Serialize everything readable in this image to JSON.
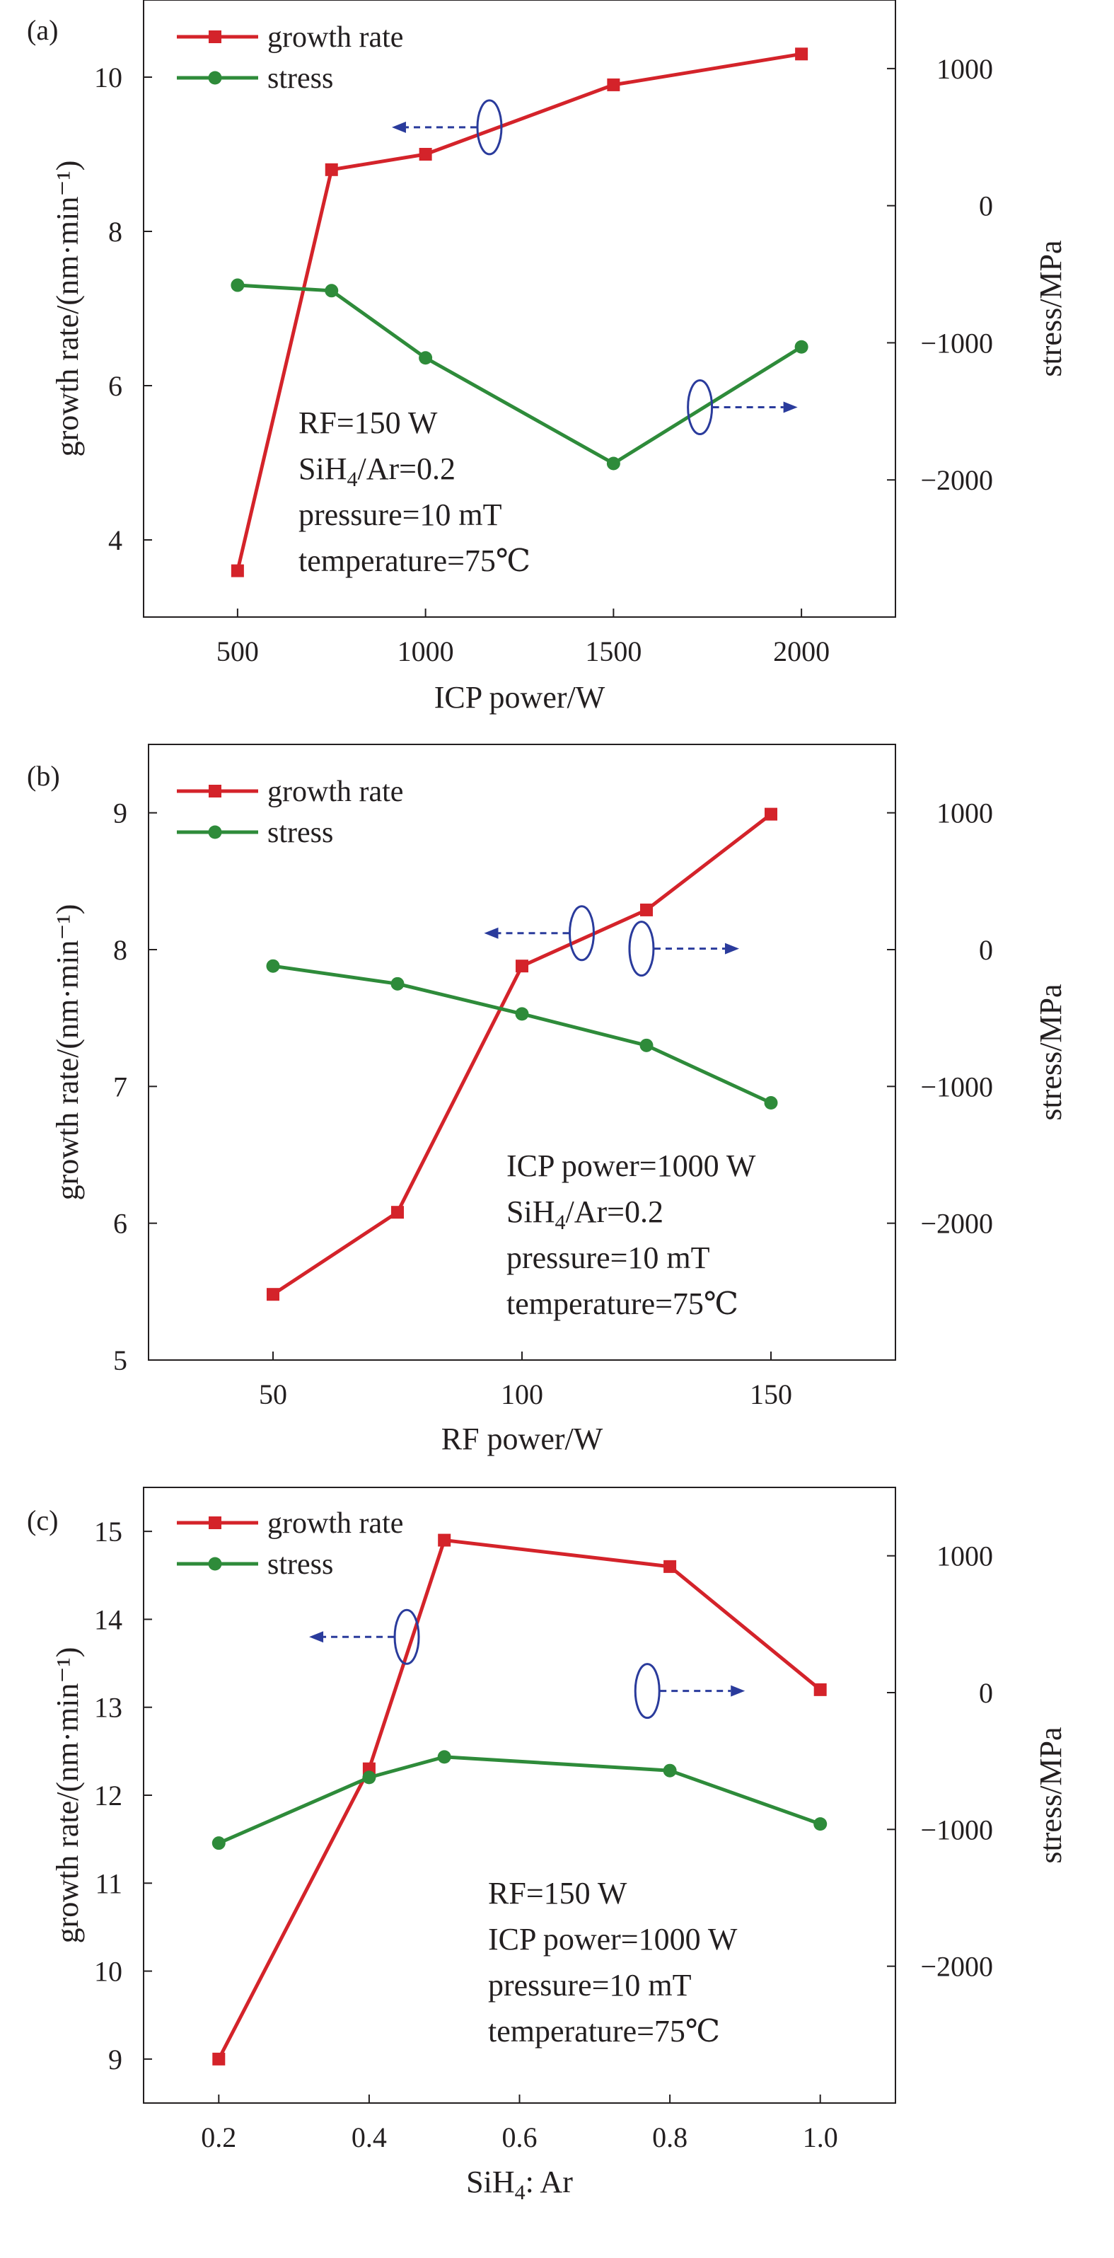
{
  "chart_data": [
    {
      "type": "line",
      "panel_label": "(a)",
      "xlabel": "ICP power/W",
      "ylabel": "growth rate/(nm·min⁻¹)",
      "y2label": "stress/MPa",
      "xlim": [
        250,
        2250
      ],
      "x_ticks": [
        "500",
        "1000",
        "1500",
        "2000"
      ],
      "ylim": [
        3.0,
        11.0
      ],
      "y_ticks": [
        "4",
        "6",
        "8",
        "10"
      ],
      "y2lim": [
        -3000,
        1500
      ],
      "y2_ticks": [
        "1000",
        "0",
        "−1000",
        "−2000"
      ],
      "grid": false,
      "legend_position": "top-left",
      "series": [
        {
          "name": "growth rate",
          "axis": "left",
          "color": "#d4232a",
          "marker": "square",
          "x": [
            500,
            750,
            1000,
            1500,
            2000
          ],
          "values": [
            3.6,
            8.8,
            9.0,
            9.9,
            10.3
          ]
        },
        {
          "name": "stress",
          "axis": "right",
          "color": "#2e8b3a",
          "marker": "circle",
          "x": [
            500,
            750,
            1000,
            1500,
            2000
          ],
          "values": [
            -580,
            -620,
            -1110,
            -1880,
            -1030
          ]
        }
      ],
      "conditions": [
        "RF=150 W",
        "SiH₄/Ar=0.2",
        "pressure=10 mT",
        "temperature=75℃"
      ],
      "annotations": [
        {
          "series": "growth rate",
          "at_x": 1170,
          "at_y": 9.35,
          "arrow": "left"
        },
        {
          "series": "stress",
          "at_x": 1730,
          "at_y": -1470,
          "arrow": "right"
        }
      ]
    },
    {
      "type": "line",
      "panel_label": "(b)",
      "xlabel": "RF power/W",
      "ylabel": "growth rate/(nm·min⁻¹)",
      "y2label": "stress/MPa",
      "xlim": [
        25,
        175
      ],
      "x_ticks": [
        "50",
        "100",
        "150"
      ],
      "ylim": [
        5.0,
        9.5
      ],
      "y_ticks": [
        "5",
        "6",
        "7",
        "8",
        "9"
      ],
      "y2lim": [
        -3000,
        1500
      ],
      "y2_ticks": [
        "1000",
        "0",
        "−1000",
        "−2000"
      ],
      "grid": false,
      "legend_position": "top-left",
      "series": [
        {
          "name": "growth rate",
          "axis": "left",
          "color": "#d4232a",
          "marker": "square",
          "x": [
            50,
            75,
            100,
            125,
            150
          ],
          "values": [
            5.48,
            6.08,
            7.88,
            8.29,
            8.99
          ]
        },
        {
          "name": "stress",
          "axis": "right",
          "color": "#2e8b3a",
          "marker": "circle",
          "x": [
            50,
            75,
            100,
            125,
            150
          ],
          "values": [
            -120,
            -250,
            -470,
            -700,
            -1120
          ]
        }
      ],
      "conditions": [
        "ICP power=1000 W",
        "SiH₄/Ar=0.2",
        "pressure=10 mT",
        "temperature=75℃"
      ],
      "annotations": [
        {
          "series": "growth rate",
          "at_x": 112,
          "at_y": 8.12,
          "arrow": "left"
        },
        {
          "series": "stress",
          "at_x": 124,
          "at_y": 7.22,
          "arrow": "right"
        }
      ]
    },
    {
      "type": "line",
      "panel_label": "(c)",
      "xlabel": "SiH₄: Ar",
      "ylabel": "growth rate/(nm·min⁻¹)",
      "y2label": "stress/MPa",
      "xlim": [
        0.1,
        1.1
      ],
      "x_ticks": [
        "0.2",
        "0.4",
        "0.6",
        "0.8",
        "1.0"
      ],
      "ylim": [
        8.5,
        15.5
      ],
      "y_ticks": [
        "9",
        "10",
        "11",
        "12",
        "13",
        "14",
        "15"
      ],
      "y2lim": [
        -3000,
        1500
      ],
      "y2_ticks": [
        "1000",
        "0",
        "−1000",
        "−2000"
      ],
      "grid": false,
      "legend_position": "top-left",
      "series": [
        {
          "name": "growth rate",
          "axis": "left",
          "color": "#d4232a",
          "marker": "square",
          "x": [
            0.2,
            0.4,
            0.5,
            0.8,
            1.0
          ],
          "values": [
            9.0,
            12.3,
            14.9,
            14.6,
            13.2
          ]
        },
        {
          "name": "stress",
          "axis": "right",
          "color": "#2e8b3a",
          "marker": "circle",
          "x": [
            0.2,
            0.4,
            0.5,
            0.8,
            1.0
          ],
          "values": [
            -1100,
            -620,
            -470,
            -570,
            -960
          ]
        }
      ],
      "conditions": [
        "RF=150 W",
        "ICP power=1000 W",
        "pressure=10 mT",
        "temperature=75℃"
      ],
      "annotations": [
        {
          "series": "growth rate",
          "at_x": 0.45,
          "at_y": 13.8,
          "arrow": "left"
        },
        {
          "series": "stress",
          "at_x": 0.77,
          "at_y": 12.25,
          "arrow": "right"
        }
      ]
    }
  ]
}
